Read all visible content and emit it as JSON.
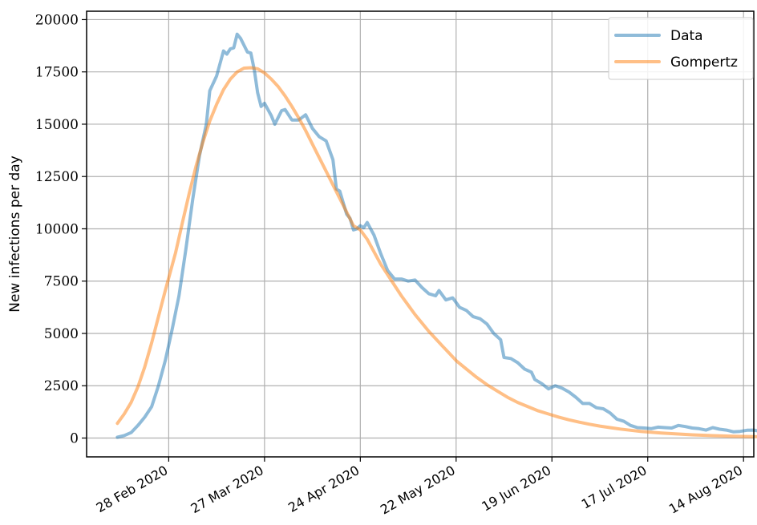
{
  "chart_data": {
    "type": "line",
    "title": "",
    "xlabel": "",
    "ylabel": "New infections per day",
    "x_tick_labels": [
      "28 Feb 2020",
      "27 Mar 2020",
      "24 Apr 2020",
      "22 May 2020",
      "19 Jun 2020",
      "17 Jul 2020",
      "14 Aug 2020"
    ],
    "x_tick_dates": [
      "2020-02-28",
      "2020-03-27",
      "2020-04-24",
      "2020-05-22",
      "2020-06-19",
      "2020-07-17",
      "2020-08-14"
    ],
    "xlim": [
      "2020-02-04",
      "2020-08-17"
    ],
    "y_ticks": [
      0,
      2500,
      5000,
      7500,
      10000,
      12500,
      15000,
      17500,
      20000
    ],
    "y_tick_labels": [
      "0",
      "2500",
      "5000",
      "7500",
      "10000",
      "12500",
      "15000",
      "17500",
      "20000"
    ],
    "ylim": [
      -900,
      20400
    ],
    "grid": true,
    "legend_position": "top-right",
    "series": [
      {
        "name": "Data",
        "color": "#1f77b4",
        "points": [
          [
            "2020-02-13",
            40
          ],
          [
            "2020-02-15",
            120
          ],
          [
            "2020-02-17",
            260
          ],
          [
            "2020-02-19",
            600
          ],
          [
            "2020-02-21",
            1000
          ],
          [
            "2020-02-23",
            1500
          ],
          [
            "2020-02-25",
            2500
          ],
          [
            "2020-02-27",
            3700
          ],
          [
            "2020-02-29",
            5200
          ],
          [
            "2020-03-02",
            6800
          ],
          [
            "2020-03-04",
            9000
          ],
          [
            "2020-03-06",
            11400
          ],
          [
            "2020-03-08",
            13500
          ],
          [
            "2020-03-10",
            15000
          ],
          [
            "2020-03-11",
            16600
          ],
          [
            "2020-03-13",
            17300
          ],
          [
            "2020-03-15",
            18500
          ],
          [
            "2020-03-16",
            18350
          ],
          [
            "2020-03-17",
            18600
          ],
          [
            "2020-03-18",
            18650
          ],
          [
            "2020-03-19",
            19300
          ],
          [
            "2020-03-20",
            19100
          ],
          [
            "2020-03-22",
            18450
          ],
          [
            "2020-03-23",
            18400
          ],
          [
            "2020-03-24",
            17600
          ],
          [
            "2020-03-25",
            16500
          ],
          [
            "2020-03-26",
            15850
          ],
          [
            "2020-03-27",
            16000
          ],
          [
            "2020-03-29",
            15400
          ],
          [
            "2020-03-30",
            15000
          ],
          [
            "2020-04-01",
            15650
          ],
          [
            "2020-04-02",
            15700
          ],
          [
            "2020-04-04",
            15200
          ],
          [
            "2020-04-06",
            15200
          ],
          [
            "2020-04-08",
            15450
          ],
          [
            "2020-04-10",
            14800
          ],
          [
            "2020-04-12",
            14400
          ],
          [
            "2020-04-14",
            14200
          ],
          [
            "2020-04-16",
            13300
          ],
          [
            "2020-04-17",
            11900
          ],
          [
            "2020-04-18",
            11800
          ],
          [
            "2020-04-20",
            10700
          ],
          [
            "2020-04-21",
            10500
          ],
          [
            "2020-04-22",
            9950
          ],
          [
            "2020-04-23",
            10000
          ],
          [
            "2020-04-24",
            10150
          ],
          [
            "2020-04-25",
            10050
          ],
          [
            "2020-04-26",
            10300
          ],
          [
            "2020-04-28",
            9700
          ],
          [
            "2020-04-30",
            8800
          ],
          [
            "2020-05-02",
            8000
          ],
          [
            "2020-05-04",
            7600
          ],
          [
            "2020-05-06",
            7600
          ],
          [
            "2020-05-08",
            7500
          ],
          [
            "2020-05-10",
            7550
          ],
          [
            "2020-05-12",
            7200
          ],
          [
            "2020-05-14",
            6900
          ],
          [
            "2020-05-16",
            6800
          ],
          [
            "2020-05-17",
            7050
          ],
          [
            "2020-05-19",
            6600
          ],
          [
            "2020-05-21",
            6700
          ],
          [
            "2020-05-23",
            6250
          ],
          [
            "2020-05-25",
            6100
          ],
          [
            "2020-05-27",
            5800
          ],
          [
            "2020-05-29",
            5700
          ],
          [
            "2020-05-31",
            5450
          ],
          [
            "2020-06-02",
            5000
          ],
          [
            "2020-06-04",
            4700
          ],
          [
            "2020-06-05",
            3850
          ],
          [
            "2020-06-07",
            3800
          ],
          [
            "2020-06-09",
            3600
          ],
          [
            "2020-06-11",
            3300
          ],
          [
            "2020-06-13",
            3150
          ],
          [
            "2020-06-14",
            2800
          ],
          [
            "2020-06-16",
            2600
          ],
          [
            "2020-06-18",
            2350
          ],
          [
            "2020-06-20",
            2500
          ],
          [
            "2020-06-22",
            2380
          ],
          [
            "2020-06-24",
            2200
          ],
          [
            "2020-06-26",
            1950
          ],
          [
            "2020-06-28",
            1650
          ],
          [
            "2020-06-30",
            1650
          ],
          [
            "2020-07-02",
            1450
          ],
          [
            "2020-07-04",
            1400
          ],
          [
            "2020-07-06",
            1200
          ],
          [
            "2020-07-08",
            900
          ],
          [
            "2020-07-10",
            800
          ],
          [
            "2020-07-12",
            600
          ],
          [
            "2020-07-14",
            500
          ],
          [
            "2020-07-16",
            480
          ],
          [
            "2020-07-18",
            450
          ],
          [
            "2020-07-20",
            520
          ],
          [
            "2020-07-22",
            500
          ],
          [
            "2020-07-24",
            480
          ],
          [
            "2020-07-26",
            600
          ],
          [
            "2020-07-28",
            550
          ],
          [
            "2020-07-30",
            480
          ],
          [
            "2020-08-01",
            450
          ],
          [
            "2020-08-03",
            380
          ],
          [
            "2020-08-05",
            500
          ],
          [
            "2020-08-07",
            420
          ],
          [
            "2020-08-09",
            380
          ],
          [
            "2020-08-11",
            300
          ],
          [
            "2020-08-13",
            320
          ],
          [
            "2020-08-15",
            370
          ],
          [
            "2020-08-17",
            380
          ],
          [
            "2020-08-19",
            320
          ],
          [
            "2020-08-21",
            280
          ],
          [
            "2020-08-22",
            200
          ]
        ]
      },
      {
        "name": "Gompertz",
        "color": "#ff7f0e",
        "points": [
          [
            "2020-02-13",
            700
          ],
          [
            "2020-02-15",
            1150
          ],
          [
            "2020-02-17",
            1700
          ],
          [
            "2020-02-19",
            2450
          ],
          [
            "2020-02-21",
            3400
          ],
          [
            "2020-02-23",
            4550
          ],
          [
            "2020-02-25",
            5800
          ],
          [
            "2020-02-27",
            7050
          ],
          [
            "2020-03-01",
            8850
          ],
          [
            "2020-03-03",
            10300
          ],
          [
            "2020-03-05",
            11700
          ],
          [
            "2020-03-07",
            13000
          ],
          [
            "2020-03-09",
            14150
          ],
          [
            "2020-03-11",
            15150
          ],
          [
            "2020-03-13",
            15950
          ],
          [
            "2020-03-15",
            16650
          ],
          [
            "2020-03-17",
            17150
          ],
          [
            "2020-03-19",
            17500
          ],
          [
            "2020-03-21",
            17680
          ],
          [
            "2020-03-23",
            17700
          ],
          [
            "2020-03-25",
            17650
          ],
          [
            "2020-03-27",
            17450
          ],
          [
            "2020-03-29",
            17150
          ],
          [
            "2020-03-31",
            16800
          ],
          [
            "2020-04-02",
            16350
          ],
          [
            "2020-04-04",
            15850
          ],
          [
            "2020-04-06",
            15300
          ],
          [
            "2020-04-08",
            14700
          ],
          [
            "2020-04-10",
            14050
          ],
          [
            "2020-04-12",
            13400
          ],
          [
            "2020-04-14",
            12750
          ],
          [
            "2020-04-16",
            12100
          ],
          [
            "2020-04-18",
            11450
          ],
          [
            "2020-04-20",
            10800
          ],
          [
            "2020-04-22",
            10150
          ],
          [
            "2020-04-24",
            9950
          ],
          [
            "2020-04-26",
            9500
          ],
          [
            "2020-04-28",
            8900
          ],
          [
            "2020-04-30",
            8300
          ],
          [
            "2020-05-02",
            7800
          ],
          [
            "2020-05-04",
            7300
          ],
          [
            "2020-05-06",
            6800
          ],
          [
            "2020-05-08",
            6350
          ],
          [
            "2020-05-10",
            5900
          ],
          [
            "2020-05-12",
            5500
          ],
          [
            "2020-05-14",
            5100
          ],
          [
            "2020-05-16",
            4750
          ],
          [
            "2020-05-18",
            4400
          ],
          [
            "2020-05-20",
            4050
          ],
          [
            "2020-05-22",
            3700
          ],
          [
            "2020-05-25",
            3300
          ],
          [
            "2020-05-28",
            2900
          ],
          [
            "2020-05-31",
            2550
          ],
          [
            "2020-06-03",
            2250
          ],
          [
            "2020-06-06",
            1950
          ],
          [
            "2020-06-09",
            1700
          ],
          [
            "2020-06-12",
            1500
          ],
          [
            "2020-06-15",
            1300
          ],
          [
            "2020-06-18",
            1150
          ],
          [
            "2020-06-21",
            1000
          ],
          [
            "2020-06-24",
            870
          ],
          [
            "2020-06-27",
            760
          ],
          [
            "2020-06-30",
            660
          ],
          [
            "2020-07-03",
            570
          ],
          [
            "2020-07-06",
            500
          ],
          [
            "2020-07-09",
            430
          ],
          [
            "2020-07-12",
            370
          ],
          [
            "2020-07-15",
            320
          ],
          [
            "2020-07-18",
            280
          ],
          [
            "2020-07-21",
            240
          ],
          [
            "2020-07-24",
            210
          ],
          [
            "2020-07-27",
            180
          ],
          [
            "2020-07-30",
            155
          ],
          [
            "2020-08-02",
            135
          ],
          [
            "2020-08-05",
            115
          ],
          [
            "2020-08-08",
            100
          ],
          [
            "2020-08-11",
            85
          ],
          [
            "2020-08-14",
            75
          ],
          [
            "2020-08-17",
            65
          ],
          [
            "2020-08-20",
            55
          ],
          [
            "2020-08-22",
            50
          ]
        ]
      }
    ]
  }
}
